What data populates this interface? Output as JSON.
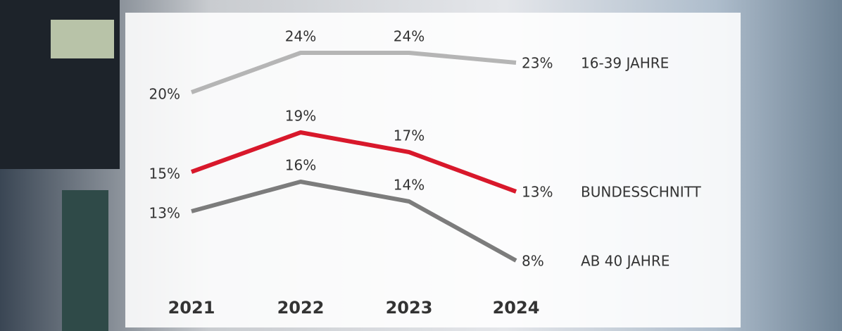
{
  "chart_data": {
    "type": "line",
    "categories": [
      "2021",
      "2022",
      "2023",
      "2024"
    ],
    "series": [
      {
        "name": "16-39 JAHRE",
        "color": "#b5b5b5",
        "values": [
          20,
          24,
          24,
          23
        ],
        "value_labels": [
          "20%",
          "24%",
          "24%",
          "23%"
        ]
      },
      {
        "name": "BUNDESSCHNITT",
        "color": "#d8182b",
        "values": [
          15,
          19,
          17,
          13
        ],
        "value_labels": [
          "15%",
          "19%",
          "17%",
          "13%"
        ]
      },
      {
        "name": "AB 40 JAHRE",
        "color": "#7c7c7c",
        "values": [
          13,
          16,
          14,
          8
        ],
        "value_labels": [
          "13%",
          "16%",
          "14%",
          "8%"
        ]
      }
    ]
  }
}
